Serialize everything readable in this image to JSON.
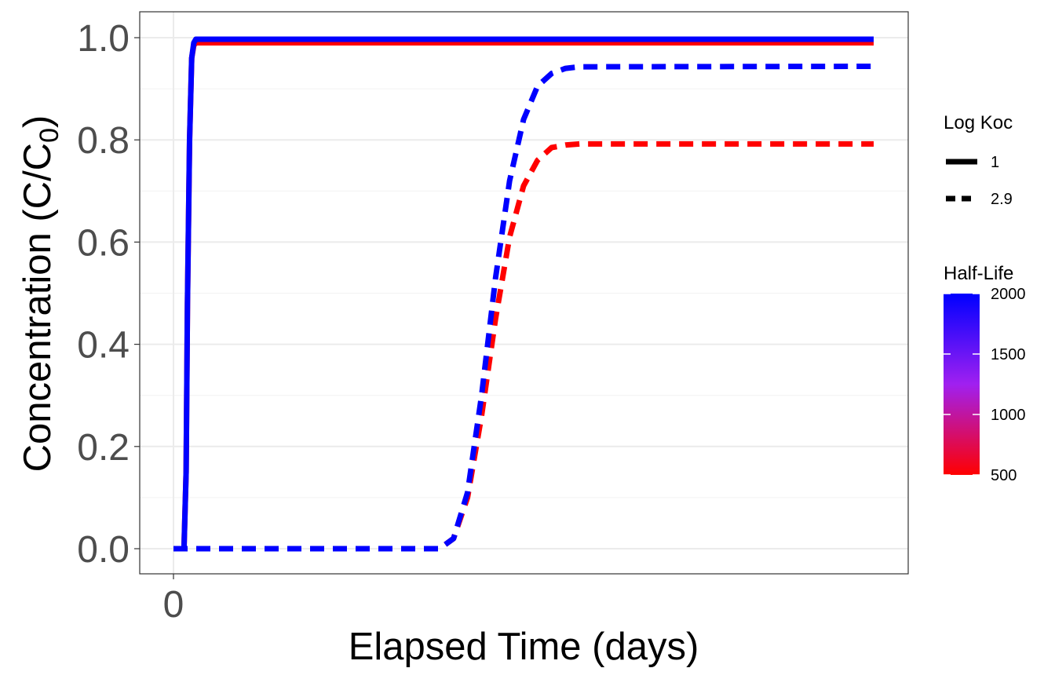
{
  "chart_data": {
    "type": "line",
    "xlabel": "Elapsed Time (days)",
    "ylabel_main": "Concentration (C/C",
    "ylabel_sub": "0",
    "ylabel_close": ")",
    "xlim": [
      0,
      100
    ],
    "ylim": [
      0,
      1.0
    ],
    "x_ticks": [
      0
    ],
    "y_ticks": [
      0.0,
      0.2,
      0.4,
      0.6,
      0.8,
      1.0
    ],
    "y_tick_labels": [
      "0.0",
      "0.2",
      "0.4",
      "0.6",
      "0.8",
      "1.0"
    ],
    "grid": true,
    "legend_position": "right",
    "legend_linetype": {
      "title": "Log Koc",
      "entries": [
        {
          "label": "1",
          "dash": "solid"
        },
        {
          "label": "2.9",
          "dash": "dashed"
        }
      ]
    },
    "legend_color": {
      "title": "Half-Life",
      "range": [
        500,
        2000
      ],
      "tick_values": [
        500,
        1000,
        1500,
        2000
      ],
      "tick_labels": [
        "500",
        "1000",
        "1500",
        "2000"
      ],
      "low_color": "#ff0000",
      "mid_color": "#a020f0",
      "high_color": "#0000ff"
    },
    "series": [
      {
        "logkoc": "1",
        "half_life": 500,
        "color": "#ff0000",
        "dash": "solid",
        "x": [
          0,
          1.5,
          1.8,
          2.0,
          2.3,
          2.6,
          2.9,
          3.2,
          100
        ],
        "y": [
          0,
          0,
          0.15,
          0.48,
          0.8,
          0.96,
          0.985,
          0.99,
          0.99
        ]
      },
      {
        "logkoc": "1",
        "half_life": 2000,
        "color": "#0000ff",
        "dash": "solid",
        "x": [
          0,
          1.5,
          1.8,
          2.0,
          2.3,
          2.6,
          2.9,
          3.2,
          100
        ],
        "y": [
          0,
          0,
          0.15,
          0.48,
          0.8,
          0.96,
          0.99,
          0.997,
          0.997
        ]
      },
      {
        "logkoc": "2.9",
        "half_life": 500,
        "color": "#ff0000",
        "dash": "dashed",
        "x": [
          0,
          38,
          40,
          42,
          44,
          46,
          48,
          50,
          52,
          54,
          56,
          58,
          100
        ],
        "y": [
          0,
          0,
          0.02,
          0.1,
          0.26,
          0.45,
          0.61,
          0.71,
          0.76,
          0.785,
          0.79,
          0.792,
          0.792
        ]
      },
      {
        "logkoc": "2.9",
        "half_life": 2000,
        "color": "#0000ff",
        "dash": "dashed",
        "x": [
          0,
          38,
          40,
          42,
          44,
          46,
          48,
          50,
          52,
          54,
          56,
          58,
          100
        ],
        "y": [
          0,
          0,
          0.02,
          0.11,
          0.3,
          0.53,
          0.72,
          0.84,
          0.905,
          0.93,
          0.94,
          0.943,
          0.944
        ]
      }
    ]
  }
}
